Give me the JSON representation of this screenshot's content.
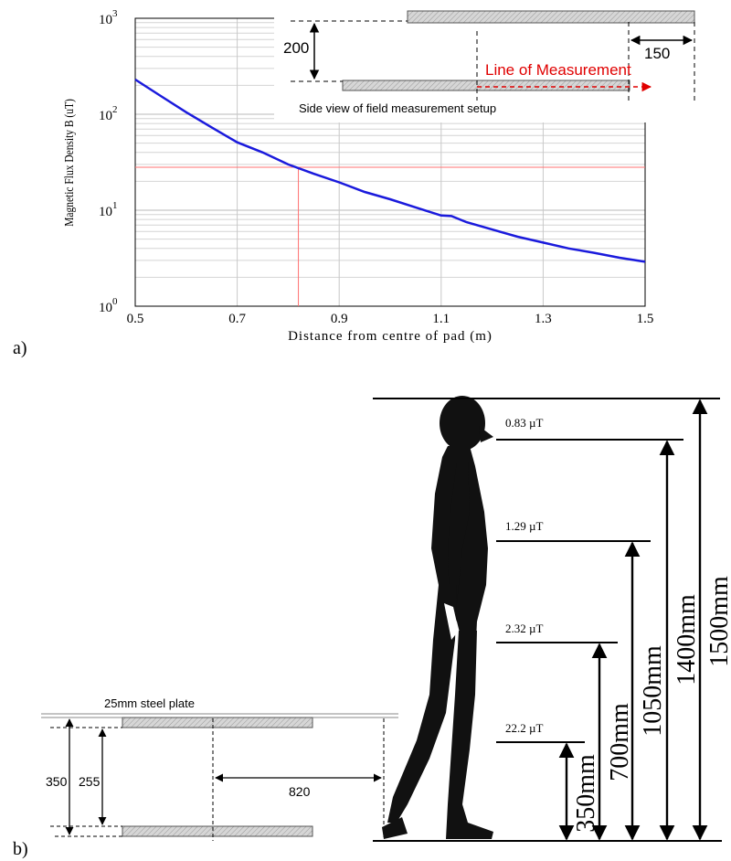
{
  "panel_a": {
    "label": "a)",
    "inset": {
      "gap_label": "200",
      "offset_label": "150",
      "measurement_label": "Line of Measurement",
      "caption": "Side view of field measurement setup"
    }
  },
  "panel_b": {
    "label": "b)",
    "plate_label": "25mm steel plate",
    "dim_350": "350",
    "dim_255": "255",
    "dim_820": "820",
    "readings": [
      {
        "field": "0.83 µT",
        "height": "1400mm"
      },
      {
        "field": "1.29 µT",
        "height": "1050mm"
      },
      {
        "field": "2.32 µT",
        "height": "700mm"
      },
      {
        "field": "22.2 µT",
        "height": "350mm"
      }
    ],
    "total_height": "1500mm"
  },
  "chart_data": {
    "type": "line",
    "xlabel": "Distance from centre of pad (m)",
    "ylabel": "Magnetic Flux Density B (uT)",
    "y_scale": "log",
    "xlim": [
      0.5,
      1.5
    ],
    "ylim": [
      1,
      1000
    ],
    "x_ticks": [
      "0.5",
      "0.7",
      "0.9",
      "1.1",
      "1.3",
      "1.5"
    ],
    "grid": true,
    "series": [
      {
        "color": "#1a1adc",
        "x": [
          0.5,
          0.55,
          0.6,
          0.65,
          0.7,
          0.75,
          0.8,
          0.85,
          0.9,
          0.95,
          1.0,
          1.05,
          1.1,
          1.12,
          1.15,
          1.2,
          1.25,
          1.3,
          1.35,
          1.4,
          1.45,
          1.5
        ],
        "y": [
          230,
          155,
          105,
          73,
          51,
          40,
          30,
          24,
          19.5,
          15.5,
          13,
          10.7,
          8.8,
          8.7,
          7.5,
          6.3,
          5.3,
          4.6,
          4.0,
          3.6,
          3.2,
          2.9
        ]
      }
    ],
    "reference_lines": [
      {
        "orientation": "horizontal",
        "y": 28,
        "color": "#ff7070"
      },
      {
        "orientation": "vertical",
        "x": 0.82,
        "color": "#ff7070"
      }
    ]
  }
}
